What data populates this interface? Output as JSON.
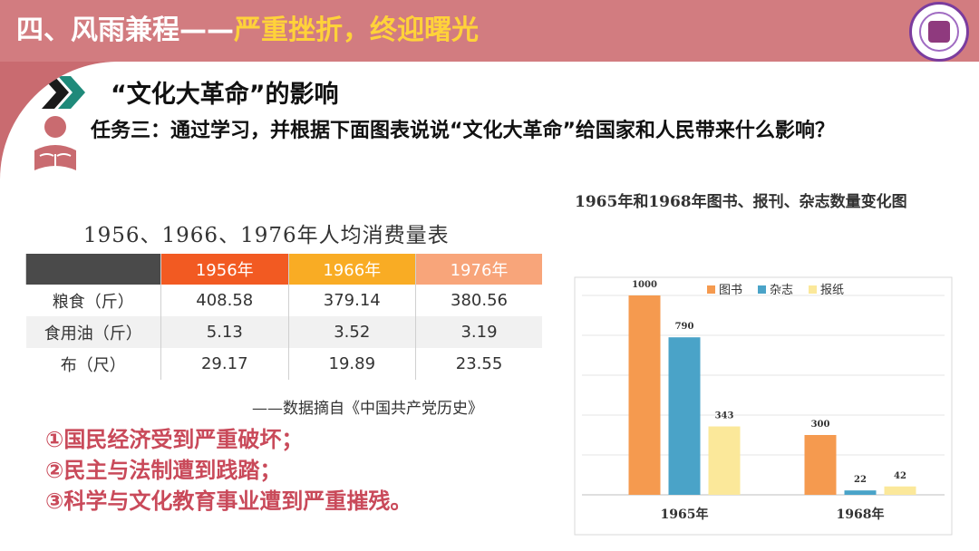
{
  "header": {
    "title_part1": "四、风雨兼程——",
    "title_part2": "严重挫折，终迎曙光"
  },
  "section": {
    "title": "“文化大革命”的影响"
  },
  "task": {
    "text": "任务三：通过学习，并根据下面图表说说“文化大革命”给国家和人民带来什么影响？"
  },
  "consumption_table": {
    "title": "1956、1966、1976年人均消费量表",
    "header": [
      "",
      "1956年",
      "1966年",
      "1976年"
    ],
    "rows": [
      {
        "item": "粮食（斤）",
        "values": [
          "408.58",
          "379.14",
          "380.56"
        ]
      },
      {
        "item": "食用油（斤）",
        "values": [
          "5.13",
          "3.52",
          "3.19"
        ]
      },
      {
        "item": "布（尺）",
        "values": [
          "29.17",
          "19.89",
          "23.55"
        ]
      }
    ],
    "source": "——数据摘自《中国共产党历史》",
    "colors": {
      "label_col": "#4a4a4a",
      "y1956": "#f25a22",
      "y1966": "#f9ac24",
      "y1976": "#f8a57a"
    }
  },
  "impacts": [
    "①国民经济受到严重破坏；",
    "②民主与法制遭到践踏；",
    "③科学与文化教育事业遭到严重摧残。"
  ],
  "chart_data": {
    "type": "bar",
    "title": "1965年和1968年图书、报刊、杂志数量变化图",
    "categories": [
      "1965年",
      "1968年"
    ],
    "series": [
      {
        "name": "图书",
        "values": [
          1000,
          300
        ],
        "color": "#f59a4f"
      },
      {
        "name": "杂志",
        "values": [
          790,
          22
        ],
        "color": "#4aa3c8"
      },
      {
        "name": "报纸",
        "values": [
          343,
          42
        ],
        "color": "#fbe89a"
      }
    ],
    "ylim": [
      0,
      1000
    ],
    "grid": true,
    "legend_position": "top"
  }
}
